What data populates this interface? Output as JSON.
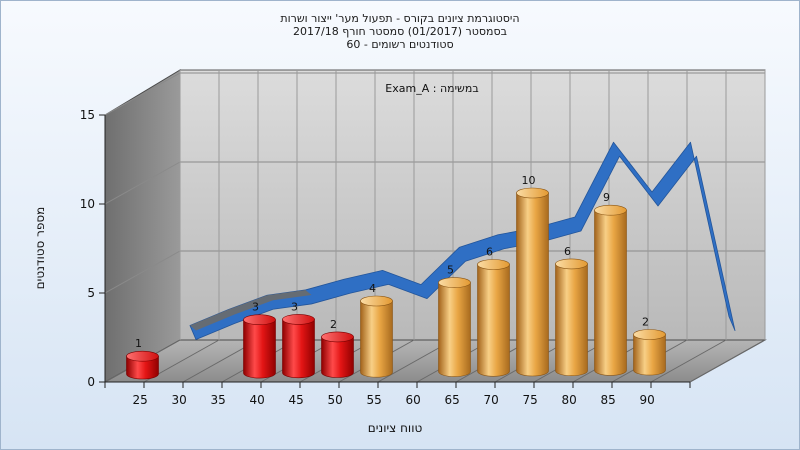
{
  "chart_data": {
    "type": "bar",
    "title_lines": [
      "היסטוגרמת ציונים בקורס - תפעול מער' ייצור ושרות",
      "בסמסטר  (01/2017)  סמסטר חורף 2017/18",
      "סטודנטים רשומים - 60"
    ],
    "annotation": "Exam_A : במשימה",
    "xlabel": "טווח ציונים",
    "ylabel": "מספר סטודנטים",
    "ylim": [
      0,
      15
    ],
    "yticks": [
      "0",
      "5",
      "10",
      "15"
    ],
    "categories": [
      "25",
      "30",
      "35",
      "40",
      "45",
      "50",
      "55",
      "60",
      "65",
      "70",
      "75",
      "80",
      "85",
      "90"
    ],
    "values": [
      1,
      0,
      0,
      3,
      3,
      2,
      4,
      0,
      5,
      6,
      10,
      6,
      9,
      2
    ],
    "labels": [
      "1",
      "",
      "",
      "3",
      "3",
      "2",
      "4",
      "",
      "5",
      "6",
      "10",
      "6",
      "9",
      "2"
    ],
    "bar_colors": [
      "red",
      "",
      "",
      "red",
      "red",
      "red",
      "orange",
      "",
      "orange",
      "orange",
      "orange",
      "orange",
      "orange",
      "orange"
    ],
    "trend_values": [
      0.7,
      1.6,
      2.4,
      2.7,
      3.3,
      3.8,
      3.0,
      5.1,
      5.8,
      6.2,
      6.8,
      11.0,
      8.2,
      11.0,
      1.2
    ],
    "grid": true,
    "legend": "none",
    "colors": {
      "red": "#e11b1b",
      "orange": "#e8a23a",
      "trend": "#2f6fc4",
      "trend_back": "#6b6b6b"
    }
  }
}
